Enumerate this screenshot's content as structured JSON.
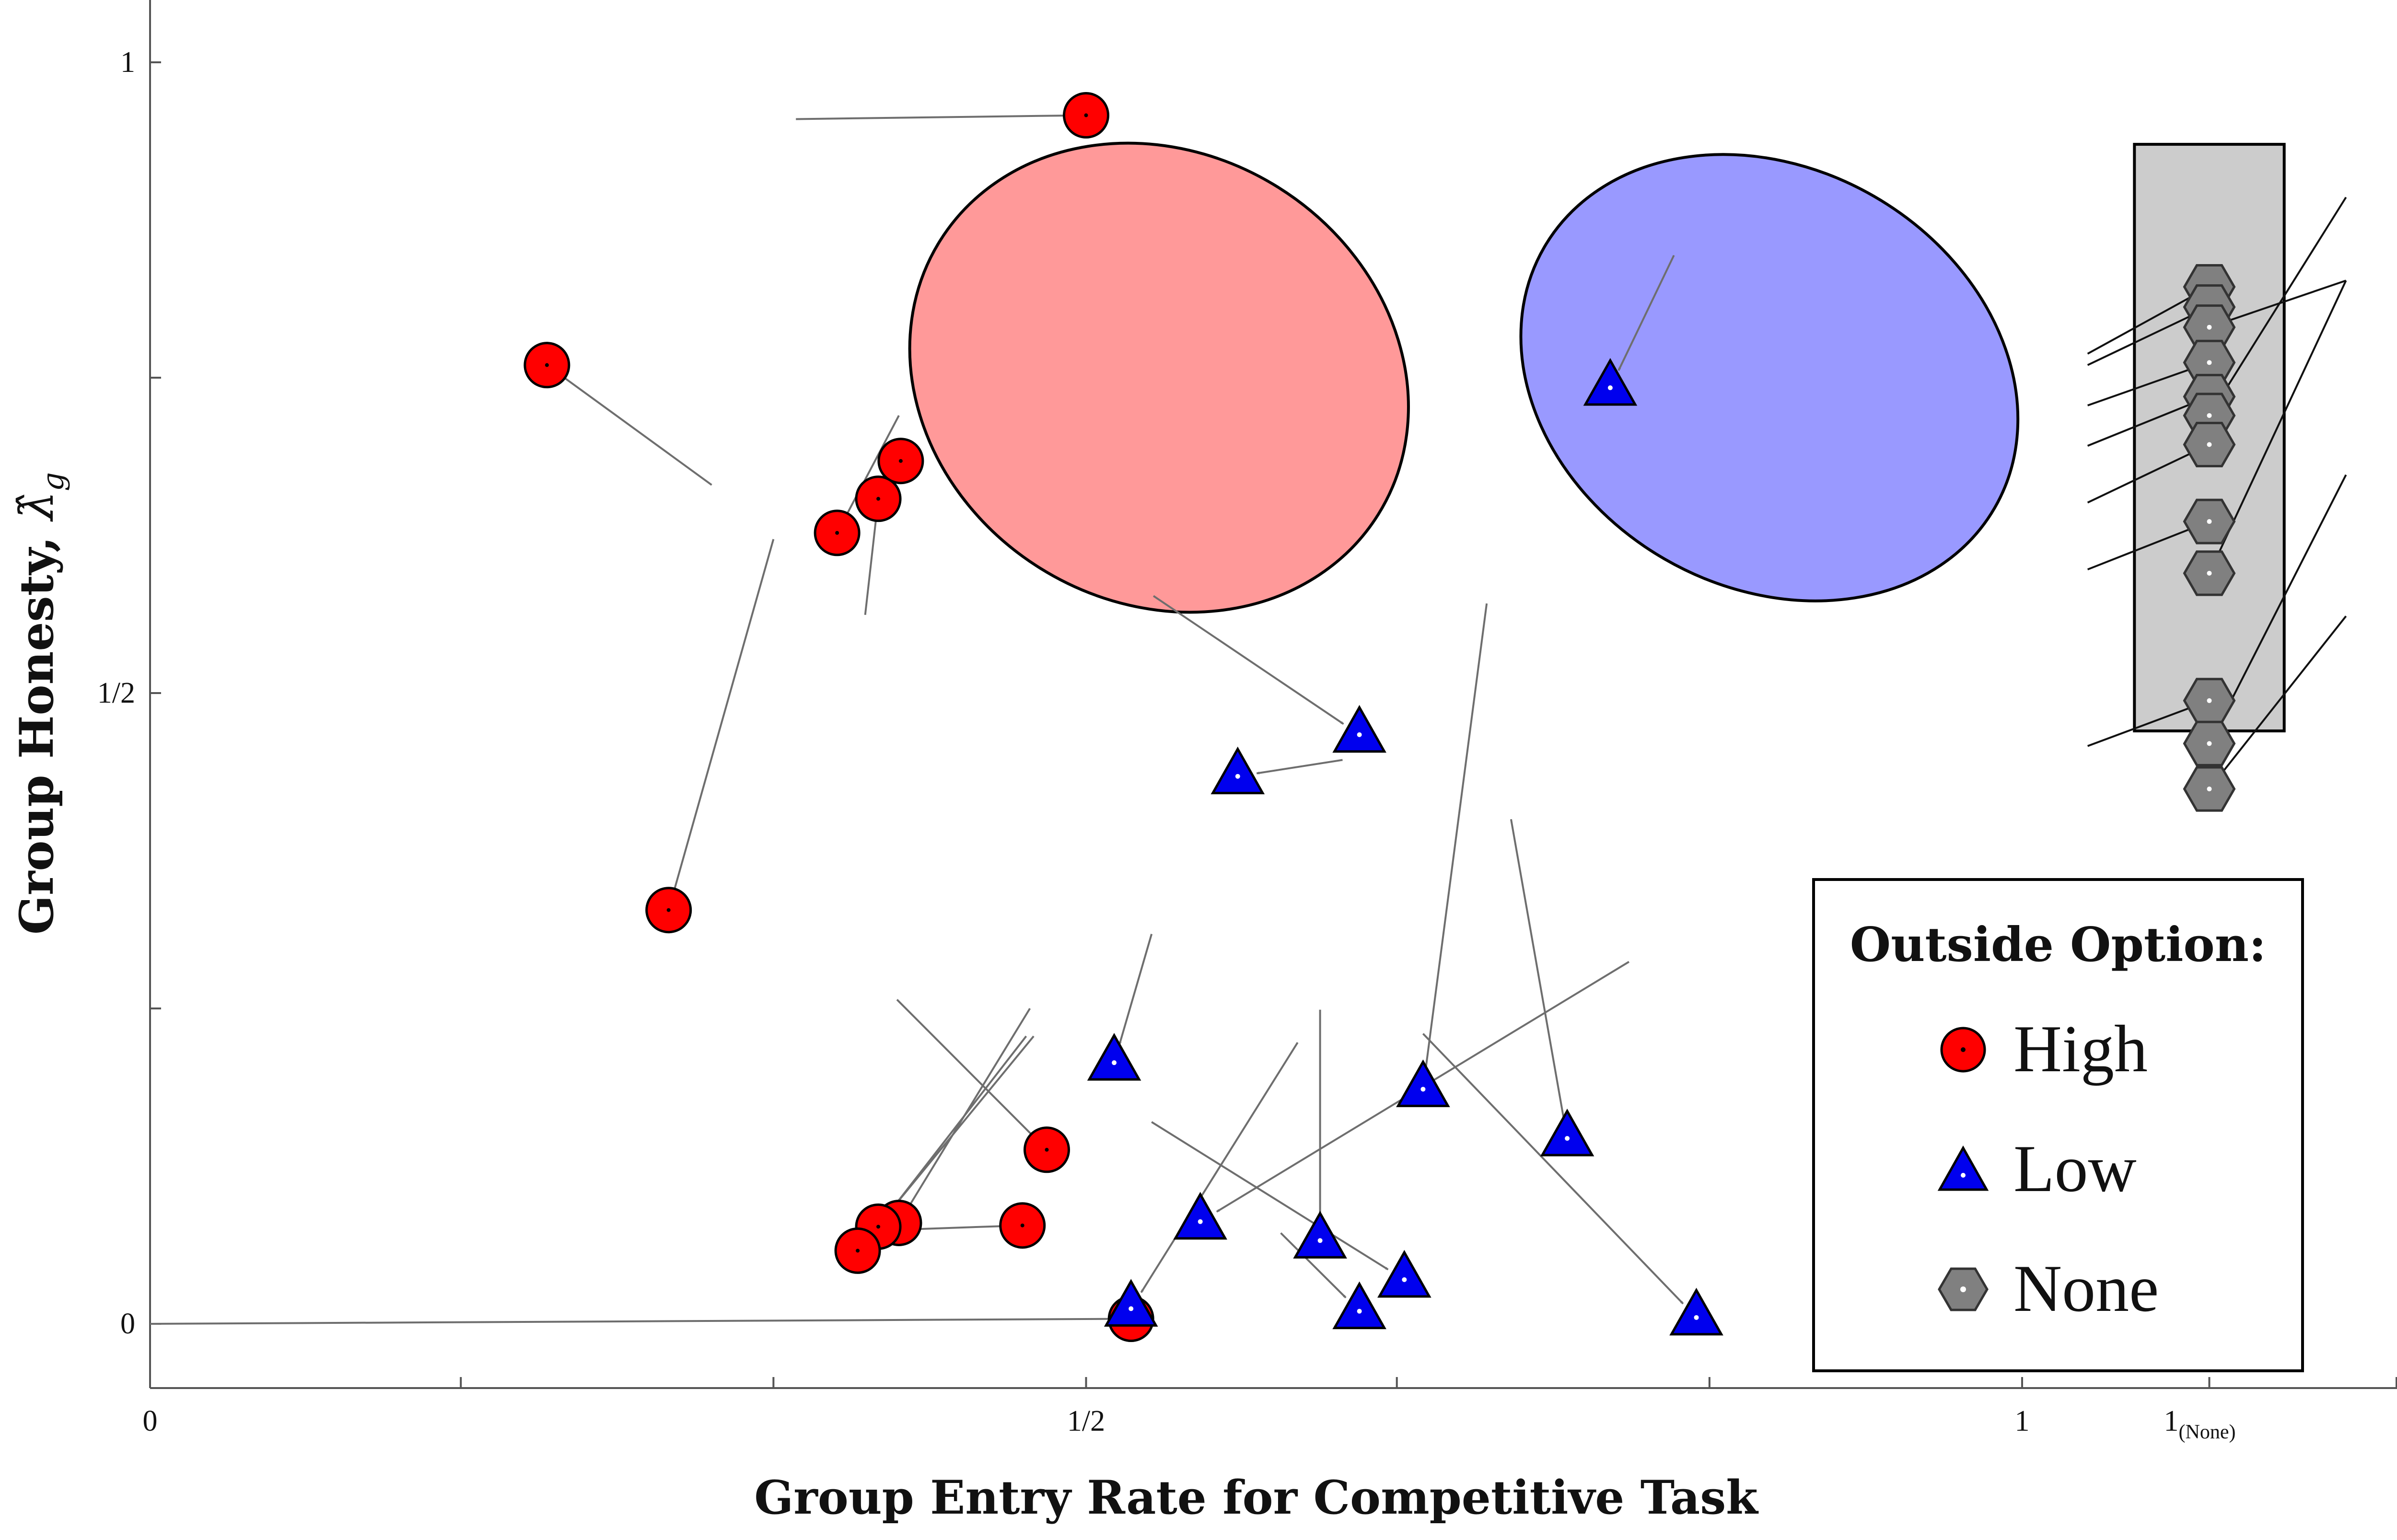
{
  "chart_data": {
    "type": "scatter",
    "xlabel": "Group Entry Rate for Competitive Task",
    "ylabel_main": "Group Honesty, ",
    "ylabel_symbol": "λ̂",
    "ylabel_sub": "g",
    "x_ticks": [
      {
        "value": 0,
        "label": "0"
      },
      {
        "value": 0.5,
        "label": "1/2"
      },
      {
        "value": 1,
        "label": "1"
      }
    ],
    "none_tick": {
      "label": "1",
      "sub": "(None)"
    },
    "y_ticks": [
      {
        "value": 0,
        "label": "0"
      },
      {
        "value": 0.5,
        "label": "1/2"
      },
      {
        "value": 1,
        "label": "1"
      }
    ],
    "xlim": [
      0,
      1.2
    ],
    "ylim": [
      -0.05,
      1.05
    ],
    "none_x": 1.1,
    "legend": {
      "title": "Outside Option:",
      "position": "bottom-right",
      "entries": [
        {
          "label": "High",
          "marker": "circle",
          "color": "#ff0000"
        },
        {
          "label": "Low",
          "marker": "triangle",
          "color": "#0000ee"
        },
        {
          "label": "None",
          "marker": "hexagon",
          "color": "#808080"
        }
      ]
    },
    "ellipses": [
      {
        "name": "High",
        "cx": 0.539,
        "cy": 0.75,
        "rx": 0.138,
        "ry": 0.178,
        "angle": -32,
        "color": "#ff9999"
      },
      {
        "name": "Low",
        "cx": 0.865,
        "cy": 0.75,
        "rx": 0.139,
        "ry": 0.166,
        "angle": -30,
        "color": "#9999ff"
      }
    ],
    "none_box": {
      "x": [
        1.06,
        1.14
      ],
      "y": [
        0.47,
        0.935
      ],
      "color": "#cccccc"
    },
    "series": [
      {
        "name": "High",
        "marker": "circle",
        "color": "#ff0000",
        "points": [
          {
            "x": 0.5,
            "y": 0.958,
            "from": [
              0.345,
              0.955
            ]
          },
          {
            "x": 0.212,
            "y": 0.76,
            "from": [
              0.3,
              0.665
            ]
          },
          {
            "x": 0.401,
            "y": 0.684,
            "from": 0.0
          },
          {
            "x": 0.389,
            "y": 0.654,
            "from": [
              0.382,
              0.562
            ]
          },
          {
            "x": 0.367,
            "y": 0.627,
            "from": [
              0.4,
              0.72
            ]
          },
          {
            "x": 0.277,
            "y": 0.328,
            "from": [
              0.333,
              0.622
            ]
          },
          {
            "x": 0.479,
            "y": 0.138,
            "from": [
              0.399,
              0.257
            ]
          },
          {
            "x": 0.4,
            "y": 0.08,
            "from": [
              0.47,
              0.25
            ]
          },
          {
            "x": 0.389,
            "y": 0.077,
            "from": [
              0.468,
              0.228
            ]
          },
          {
            "x": 0.466,
            "y": 0.078,
            "from": [
              0.388,
              0.074
            ]
          },
          {
            "x": 0.378,
            "y": 0.058,
            "from": [
              0.472,
              0.228
            ]
          },
          {
            "x": 0.524,
            "y": 0.004,
            "from": [
              0.0,
              0.0
            ]
          }
        ]
      },
      {
        "name": "Low",
        "marker": "triangle",
        "color": "#0000ee",
        "points": [
          {
            "x": 0.78,
            "y": 0.742,
            "from": [
              0.814,
              0.847
            ]
          },
          {
            "x": 0.646,
            "y": 0.467,
            "from": [
              0.536,
              0.577
            ]
          },
          {
            "x": 0.581,
            "y": 0.434,
            "from": [
              0.637,
              0.447
            ]
          },
          {
            "x": 0.515,
            "y": 0.207,
            "from": [
              0.535,
              0.309
            ]
          },
          {
            "x": 0.68,
            "y": 0.186,
            "from": [
              0.714,
              0.571
            ]
          },
          {
            "x": 0.757,
            "y": 0.147,
            "from": [
              0.727,
              0.4
            ]
          },
          {
            "x": 0.561,
            "y": 0.081,
            "from": [
              0.79,
              0.287
            ]
          },
          {
            "x": 0.625,
            "y": 0.066,
            "from": [
              0.625,
              0.249
            ]
          },
          {
            "x": 0.67,
            "y": 0.035,
            "from": [
              0.535,
              0.16
            ]
          },
          {
            "x": 0.826,
            "y": 0.005,
            "from": [
              0.68,
              0.23
            ]
          },
          {
            "x": 0.646,
            "y": 0.01,
            "from": [
              0.604,
              0.072
            ]
          },
          {
            "x": 0.524,
            "y": 0.012,
            "from": [
              0.613,
              0.223
            ]
          }
        ]
      },
      {
        "name": "None",
        "marker": "hexagon",
        "color": "#808080",
        "points": [
          {
            "x": 1.1,
            "y": 0.822,
            "from": [
              1.035,
              0.769
            ]
          },
          {
            "x": 1.1,
            "y": 0.806,
            "from": [
              1.035,
              0.76
            ]
          },
          {
            "x": 1.1,
            "y": 0.79,
            "from": [
              1.173,
              0.827
            ]
          },
          {
            "x": 1.1,
            "y": 0.762,
            "from": [
              1.035,
              0.728
            ]
          },
          {
            "x": 1.1,
            "y": 0.735,
            "from": [
              1.035,
              0.696
            ]
          },
          {
            "x": 1.1,
            "y": 0.72,
            "from": [
              1.173,
              0.893
            ]
          },
          {
            "x": 1.1,
            "y": 0.697,
            "from": [
              1.035,
              0.651
            ]
          },
          {
            "x": 1.1,
            "y": 0.636,
            "from": [
              1.035,
              0.598
            ]
          },
          {
            "x": 1.1,
            "y": 0.595,
            "from": [
              1.173,
              0.827
            ]
          },
          {
            "x": 1.1,
            "y": 0.494,
            "from": [
              1.035,
              0.458
            ]
          },
          {
            "x": 1.1,
            "y": 0.46,
            "from": [
              1.173,
              0.673
            ]
          },
          {
            "x": 1.1,
            "y": 0.424,
            "from": [
              1.173,
              0.561
            ]
          }
        ]
      }
    ]
  }
}
